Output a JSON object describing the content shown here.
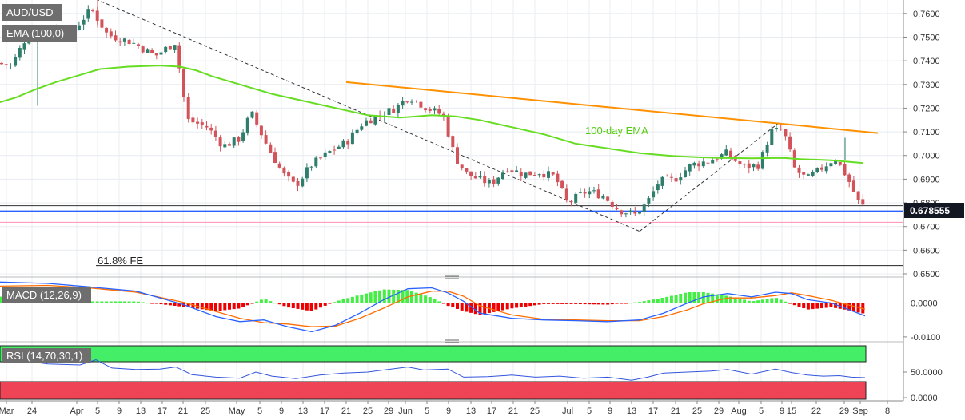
{
  "chart_data": {
    "type": "candlestick",
    "symbol": "AUD/USD",
    "colors": {
      "background": "#ffffff",
      "grid": "#e8ecf0",
      "up": "#2f7d6b",
      "down": "#d2545a",
      "ema": "#66dd22",
      "resistance": "#ff9100",
      "price_badge": "#131722",
      "support_blue": "#2962ff",
      "support_pink": "#ff8fb4",
      "macd_line": "#2962ff",
      "signal_line": "#ff6d00",
      "hist_up": "#44ee44",
      "hist_down": "#ee0000",
      "rsi_line": "#3355dd",
      "rsi_overbought": "#44ee66",
      "rsi_oversold": "#ee4455"
    },
    "x_ticks": [
      "Mar",
      "24",
      "Apr",
      "5",
      "9",
      "13",
      "17",
      "21",
      "25",
      "May",
      "5",
      "9",
      "13",
      "17",
      "21",
      "25",
      "29",
      "Jun",
      "5",
      "9",
      "13",
      "17",
      "21",
      "25",
      "Jul",
      "5",
      "9",
      "13",
      "17",
      "21",
      "25",
      "29",
      "Aug",
      "5",
      "9",
      "15",
      "22",
      "29",
      "Sep",
      "8"
    ],
    "price_pane": {
      "label_pair": "AUD/USD",
      "label_ema": "EMA (100,0)",
      "ylim": [
        0.65,
        0.765
      ],
      "y_ticks": [
        "0.7600",
        "0.7500",
        "0.7400",
        "0.7300",
        "0.7200",
        "0.7100",
        "0.7000",
        "0.6900",
        "0.6800",
        "0.6700",
        "0.6600",
        "0.6500"
      ],
      "current_price": "0.678555",
      "annotations": [
        "100-day EMA",
        "61.8% FE"
      ],
      "horizontal_levels": [
        0.6788,
        0.6765,
        0.6718,
        0.6535
      ],
      "candles": [],
      "ema_100": [
        [
          0,
          0.7225
        ],
        [
          20,
          0.7245
        ],
        [
          45,
          0.728
        ],
        [
          70,
          0.731
        ],
        [
          100,
          0.734
        ],
        [
          125,
          0.7365
        ],
        [
          160,
          0.7375
        ],
        [
          200,
          0.738
        ],
        [
          225,
          0.7375
        ],
        [
          245,
          0.736
        ],
        [
          265,
          0.7335
        ],
        [
          300,
          0.73
        ],
        [
          340,
          0.726
        ],
        [
          380,
          0.723
        ],
        [
          420,
          0.72
        ],
        [
          460,
          0.717
        ],
        [
          500,
          0.716
        ],
        [
          540,
          0.717
        ],
        [
          570,
          0.7165
        ],
        [
          600,
          0.715
        ],
        [
          640,
          0.712
        ],
        [
          680,
          0.709
        ],
        [
          720,
          0.705
        ],
        [
          760,
          0.703
        ],
        [
          800,
          0.701
        ],
        [
          840,
          0.6998
        ],
        [
          870,
          0.6993
        ],
        [
          900,
          0.699
        ],
        [
          940,
          0.6988
        ],
        [
          980,
          0.699
        ],
        [
          1000,
          0.6985
        ],
        [
          1040,
          0.698
        ],
        [
          1080,
          0.6968
        ]
      ],
      "trend_lines": [
        {
          "style": "dashed",
          "points": [
            [
              120,
              0.766
            ],
            [
              800,
              0.668
            ]
          ]
        },
        {
          "style": "dashed",
          "points": [
            [
              800,
              0.668
            ],
            [
              975,
              0.714
            ]
          ]
        },
        {
          "style": "solid",
          "points": [
            [
              433,
              0.731
            ],
            [
              1098,
              0.7095
            ]
          ]
        }
      ]
    },
    "macd_pane": {
      "label": "MACD (12,26,9)",
      "y_ticks": [
        "0.0000",
        "-0.0100"
      ],
      "ylim": [
        -0.0105,
        0.0065
      ],
      "macd": [
        [
          0,
          0.0062
        ],
        [
          60,
          0.0058
        ],
        [
          110,
          0.0048
        ],
        [
          170,
          0.0035
        ],
        [
          230,
          -0.0005
        ],
        [
          270,
          -0.004
        ],
        [
          300,
          -0.0055
        ],
        [
          330,
          -0.005
        ],
        [
          360,
          -0.007
        ],
        [
          390,
          -0.0085
        ],
        [
          420,
          -0.0065
        ],
        [
          450,
          -0.003
        ],
        [
          480,
          0.001
        ],
        [
          510,
          0.0042
        ],
        [
          540,
          0.0045
        ],
        [
          560,
          0.003
        ],
        [
          580,
          0.0005
        ],
        [
          600,
          -0.003
        ],
        [
          640,
          -0.0045
        ],
        [
          680,
          -0.005
        ],
        [
          720,
          -0.0052
        ],
        [
          760,
          -0.0055
        ],
        [
          800,
          -0.005
        ],
        [
          830,
          -0.003
        ],
        [
          860,
          0.0
        ],
        [
          880,
          0.0018
        ],
        [
          910,
          0.0028
        ],
        [
          940,
          0.0018
        ],
        [
          970,
          0.0032
        ],
        [
          990,
          0.0028
        ],
        [
          1010,
          0.001
        ],
        [
          1040,
          0.0
        ],
        [
          1060,
          -0.0018
        ],
        [
          1082,
          -0.0038
        ]
      ],
      "signal": [
        [
          0,
          0.005
        ],
        [
          60,
          0.0052
        ],
        [
          110,
          0.0045
        ],
        [
          170,
          0.0032
        ],
        [
          230,
          0.0002
        ],
        [
          270,
          -0.0025
        ],
        [
          300,
          -0.0045
        ],
        [
          330,
          -0.0058
        ],
        [
          360,
          -0.0062
        ],
        [
          390,
          -0.007
        ],
        [
          420,
          -0.0068
        ],
        [
          450,
          -0.0045
        ],
        [
          480,
          -0.0015
        ],
        [
          510,
          0.0018
        ],
        [
          540,
          0.0035
        ],
        [
          560,
          0.0035
        ],
        [
          580,
          0.002
        ],
        [
          600,
          -0.0008
        ],
        [
          640,
          -0.0035
        ],
        [
          680,
          -0.0048
        ],
        [
          720,
          -0.005
        ],
        [
          760,
          -0.0052
        ],
        [
          800,
          -0.0052
        ],
        [
          830,
          -0.004
        ],
        [
          860,
          -0.002
        ],
        [
          880,
          -0.0002
        ],
        [
          910,
          0.0015
        ],
        [
          940,
          0.0015
        ],
        [
          970,
          0.0022
        ],
        [
          990,
          0.003
        ],
        [
          1010,
          0.0022
        ],
        [
          1040,
          0.0008
        ],
        [
          1060,
          -0.0005
        ],
        [
          1082,
          -0.0018
        ]
      ]
    },
    "rsi_pane": {
      "label": "RSI (14,70,30,1)",
      "y_ticks": [
        "50.0000",
        "0.0000"
      ],
      "ylim": [
        0,
        100
      ],
      "upper_band": 70,
      "lower_band": 30,
      "rsi": [
        [
          0,
          68
        ],
        [
          30,
          72
        ],
        [
          60,
          66
        ],
        [
          100,
          64
        ],
        [
          120,
          74
        ],
        [
          140,
          58
        ],
        [
          170,
          55
        ],
        [
          200,
          56
        ],
        [
          220,
          60
        ],
        [
          240,
          45
        ],
        [
          270,
          40
        ],
        [
          300,
          38
        ],
        [
          320,
          50
        ],
        [
          340,
          42
        ],
        [
          370,
          37
        ],
        [
          400,
          44
        ],
        [
          430,
          48
        ],
        [
          460,
          50
        ],
        [
          480,
          54
        ],
        [
          510,
          60
        ],
        [
          530,
          54
        ],
        [
          560,
          56
        ],
        [
          580,
          40
        ],
        [
          610,
          41
        ],
        [
          640,
          44
        ],
        [
          670,
          40
        ],
        [
          700,
          42
        ],
        [
          730,
          38
        ],
        [
          760,
          40
        ],
        [
          790,
          34
        ],
        [
          810,
          40
        ],
        [
          830,
          48
        ],
        [
          860,
          50
        ],
        [
          890,
          52
        ],
        [
          910,
          55
        ],
        [
          940,
          46
        ],
        [
          970,
          56
        ],
        [
          990,
          49
        ],
        [
          1010,
          44
        ],
        [
          1030,
          42
        ],
        [
          1050,
          43
        ],
        [
          1065,
          40
        ],
        [
          1082,
          39
        ]
      ]
    }
  }
}
